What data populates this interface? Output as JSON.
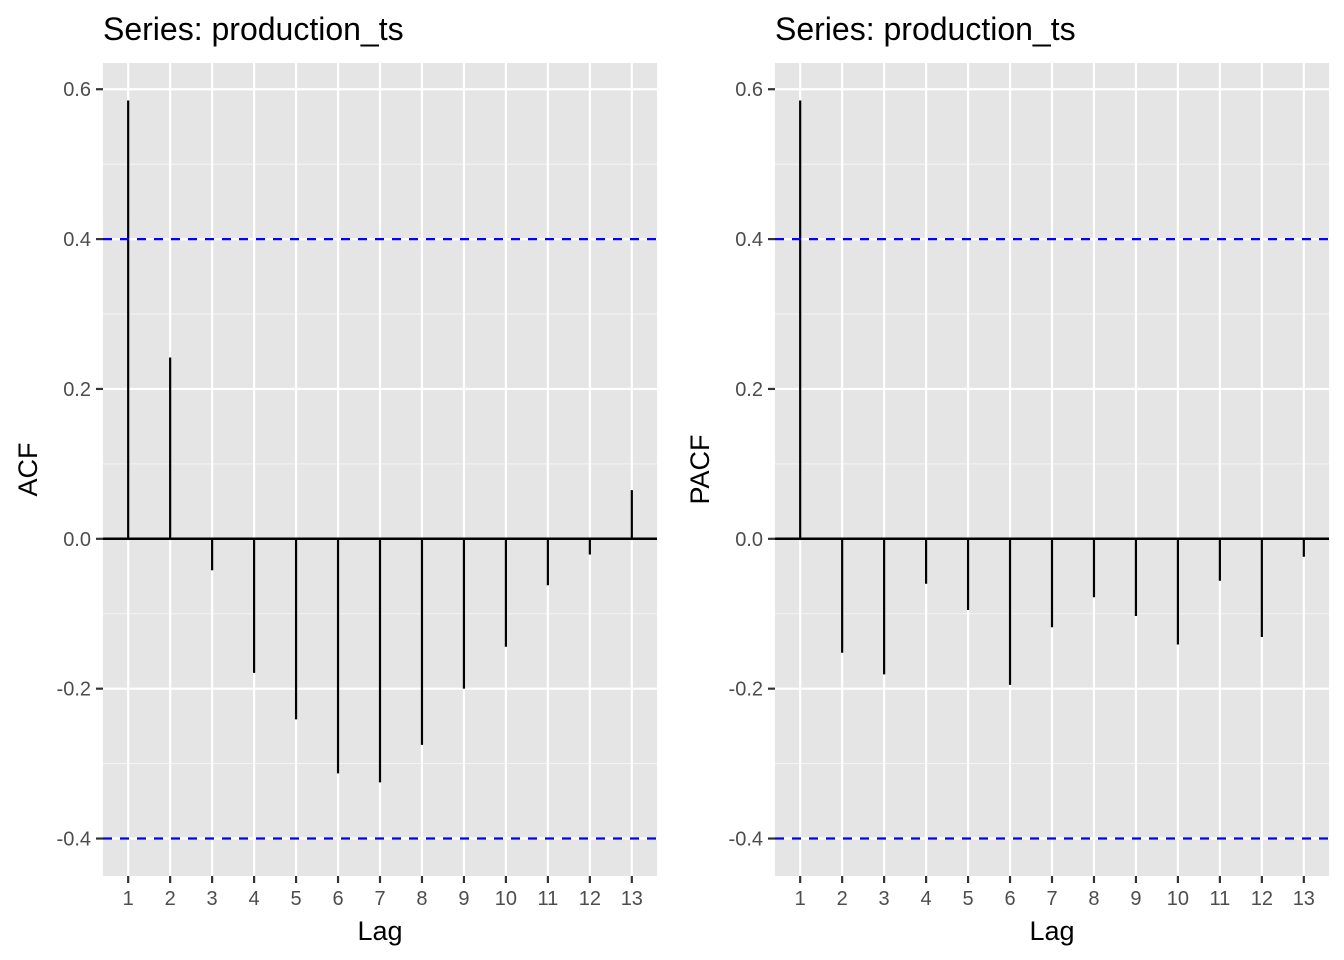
{
  "chart_data": [
    {
      "type": "bar",
      "subtype": "correlogram",
      "title": "Series: production_ts",
      "xlabel": "Lag",
      "ylabel": "ACF",
      "categories": [
        1,
        2,
        3,
        4,
        5,
        6,
        7,
        8,
        9,
        10,
        11,
        12,
        13
      ],
      "values": [
        0.585,
        0.242,
        -0.042,
        -0.179,
        -0.241,
        -0.313,
        -0.325,
        -0.275,
        -0.2,
        -0.144,
        -0.062,
        -0.021,
        0.065
      ],
      "confidence_bounds": [
        0.4,
        -0.4
      ],
      "ylim": [
        -0.45,
        0.635
      ],
      "yticks": [
        -0.4,
        -0.2,
        0.0,
        0.2,
        0.4,
        0.6
      ],
      "ytick_labels": [
        "-0.4",
        "-0.2",
        "0.0",
        "0.2",
        "0.4",
        "0.6"
      ],
      "grid": true
    },
    {
      "type": "bar",
      "subtype": "correlogram",
      "title": "Series: production_ts",
      "xlabel": "Lag",
      "ylabel": "PACF",
      "categories": [
        1,
        2,
        3,
        4,
        5,
        6,
        7,
        8,
        9,
        10,
        11,
        12,
        13
      ],
      "values": [
        0.585,
        -0.152,
        -0.181,
        -0.06,
        -0.095,
        -0.195,
        -0.118,
        -0.078,
        -0.103,
        -0.141,
        -0.056,
        -0.131,
        -0.024
      ],
      "confidence_bounds": [
        0.4,
        -0.4
      ],
      "ylim": [
        -0.45,
        0.635
      ],
      "yticks": [
        -0.4,
        -0.2,
        0.0,
        0.2,
        0.4,
        0.6
      ],
      "ytick_labels": [
        "-0.4",
        "-0.2",
        "0.0",
        "0.2",
        "0.4",
        "0.6"
      ],
      "grid": true
    }
  ],
  "colors": {
    "panel_background": "#e5e5e5",
    "grid": "#ffffff",
    "bars": "#000000",
    "confidence_line": "#0000ff",
    "tick_text": "#4d4d4d"
  }
}
